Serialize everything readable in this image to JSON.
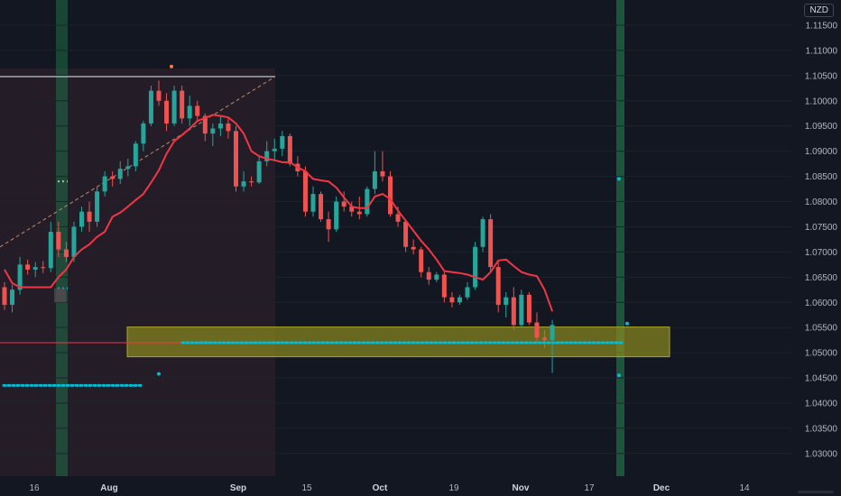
{
  "currency": "NZD",
  "colors": {
    "background": "#131722",
    "up": "#26a69a",
    "down": "#ef5350",
    "ma": "#f23645",
    "dots": "#00bcd4",
    "zone": "#8c8a1e",
    "highlight": "#1f6b45",
    "axis_text": "#b2b5be"
  },
  "chart_data": {
    "type": "candlestick",
    "y_ticks": [
      "1.11500",
      "1.11000",
      "1.10500",
      "1.10000",
      "1.09500",
      "1.09000",
      "1.08500",
      "1.08000",
      "1.07500",
      "1.07000",
      "1.06500",
      "1.06000",
      "1.05500",
      "1.05000",
      "1.04500",
      "1.04000",
      "1.03500",
      "1.03000"
    ],
    "ylim": [
      1.0255,
      1.1175
    ],
    "x_labels": [
      {
        "text": "16",
        "bold": false
      },
      {
        "text": "Aug",
        "bold": true
      },
      {
        "text": "Sep",
        "bold": true
      },
      {
        "text": "15",
        "bold": false
      },
      {
        "text": "Oct",
        "bold": true
      },
      {
        "text": "19",
        "bold": false
      },
      {
        "text": "Nov",
        "bold": true
      },
      {
        "text": "17",
        "bold": false
      },
      {
        "text": "Dec",
        "bold": true
      },
      {
        "text": "14",
        "bold": false
      }
    ],
    "support_zone": [
      1.0492,
      1.0551
    ],
    "horizontal_level": 1.1048,
    "moving_average": [
      1.0665,
      1.0638,
      1.063,
      1.063,
      1.063,
      1.063,
      1.063,
      1.065,
      1.0665,
      1.069,
      1.0705,
      1.0715,
      1.073,
      1.074,
      1.077,
      1.0778,
      1.079,
      1.0803,
      1.0815,
      1.0838,
      1.0862,
      1.0895,
      1.092,
      1.0932,
      1.0945,
      1.096,
      1.0966,
      1.0972,
      1.097,
      1.0967,
      1.0955,
      1.0935,
      1.09,
      1.089,
      1.0885,
      1.0882,
      1.0878,
      1.0878,
      1.0868,
      1.086,
      1.0845,
      1.0842,
      1.084,
      1.0828,
      1.0808,
      1.079,
      1.0787,
      1.0787,
      1.081,
      1.0815,
      1.0805,
      1.0782,
      1.0762,
      1.0742,
      1.0722,
      1.0705,
      1.0685,
      1.0662,
      1.066,
      1.0658,
      1.0655,
      1.065,
      1.0645,
      1.066,
      1.0683,
      1.0685,
      1.0672,
      1.066,
      1.0655,
      1.0652,
      1.0625,
      1.0582
    ],
    "candles": [
      [
        1.063,
        1.064,
        1.0585,
        1.0595
      ],
      [
        1.0595,
        1.0635,
        1.058,
        1.0625
      ],
      [
        1.0625,
        1.069,
        1.0615,
        1.0675
      ],
      [
        1.0675,
        1.0685,
        1.0655,
        1.0665
      ],
      [
        1.0665,
        1.068,
        1.065,
        1.067
      ],
      [
        1.067,
        1.0682,
        1.0658,
        1.0668
      ],
      [
        1.0668,
        1.076,
        1.066,
        1.074
      ],
      [
        1.074,
        1.076,
        1.069,
        1.0705
      ],
      [
        1.0705,
        1.072,
        1.068,
        1.069
      ],
      [
        1.069,
        1.076,
        1.068,
        1.075
      ],
      [
        1.075,
        1.079,
        1.074,
        1.078
      ],
      [
        1.078,
        1.08,
        1.074,
        1.076
      ],
      [
        1.076,
        1.083,
        1.075,
        1.082
      ],
      [
        1.082,
        1.086,
        1.081,
        1.085
      ],
      [
        1.085,
        1.086,
        1.083,
        1.0845
      ],
      [
        1.0845,
        1.088,
        1.0835,
        1.0865
      ],
      [
        1.0865,
        1.0885,
        1.085,
        1.087
      ],
      [
        1.087,
        1.092,
        1.086,
        1.0915
      ],
      [
        1.0915,
        1.096,
        1.09,
        1.0955
      ],
      [
        1.0955,
        1.103,
        1.095,
        1.102
      ],
      [
        1.102,
        1.104,
        1.099,
        1.1
      ],
      [
        1.1,
        1.1015,
        1.094,
        1.0955
      ],
      [
        1.0955,
        1.103,
        1.095,
        1.102
      ],
      [
        1.102,
        1.103,
        1.0955,
        1.0965
      ],
      [
        1.0965,
        1.101,
        1.095,
        1.099
      ],
      [
        1.099,
        1.1,
        1.096,
        1.097
      ],
      [
        1.097,
        1.0975,
        1.092,
        1.0935
      ],
      [
        1.0935,
        1.0955,
        1.091,
        1.0945
      ],
      [
        1.0945,
        1.097,
        1.093,
        1.0955
      ],
      [
        1.0955,
        1.0965,
        1.0925,
        1.094
      ],
      [
        1.094,
        1.095,
        1.082,
        1.083
      ],
      [
        1.083,
        1.086,
        1.082,
        1.084
      ],
      [
        1.084,
        1.085,
        1.083,
        1.0838
      ],
      [
        1.0838,
        1.089,
        1.0835,
        1.088
      ],
      [
        1.088,
        1.092,
        1.087,
        1.09
      ],
      [
        1.09,
        1.0925,
        1.088,
        1.0905
      ],
      [
        1.0905,
        1.094,
        1.089,
        1.093
      ],
      [
        1.093,
        1.0935,
        1.087,
        1.0875
      ],
      [
        1.0875,
        1.089,
        1.085,
        1.086
      ],
      [
        1.086,
        1.087,
        1.077,
        1.078
      ],
      [
        1.078,
        1.083,
        1.077,
        1.0815
      ],
      [
        1.0815,
        1.082,
        1.076,
        1.0765
      ],
      [
        1.0765,
        1.078,
        1.072,
        1.0745
      ],
      [
        1.0745,
        1.081,
        1.074,
        1.08
      ],
      [
        1.08,
        1.082,
        1.078,
        1.079
      ],
      [
        1.079,
        1.08,
        1.077,
        1.078
      ],
      [
        1.078,
        1.081,
        1.0765,
        1.0775
      ],
      [
        1.0775,
        1.083,
        1.077,
        1.0825
      ],
      [
        1.0825,
        1.09,
        1.0815,
        1.086
      ],
      [
        1.086,
        1.09,
        1.084,
        1.085
      ],
      [
        1.085,
        1.086,
        1.077,
        1.0775
      ],
      [
        1.0775,
        1.079,
        1.075,
        1.076
      ],
      [
        1.076,
        1.0765,
        1.07,
        1.071
      ],
      [
        1.071,
        1.0725,
        1.0695,
        1.0705
      ],
      [
        1.0705,
        1.071,
        1.065,
        1.066
      ],
      [
        1.066,
        1.067,
        1.0635,
        1.0645
      ],
      [
        1.0645,
        1.066,
        1.064,
        1.0655
      ],
      [
        1.0655,
        1.066,
        1.06,
        1.061
      ],
      [
        1.061,
        1.062,
        1.059,
        1.06
      ],
      [
        1.06,
        1.0615,
        1.0595,
        1.061
      ],
      [
        1.061,
        1.064,
        1.0605,
        1.063
      ],
      [
        1.063,
        1.072,
        1.0625,
        1.071
      ],
      [
        1.071,
        1.077,
        1.07,
        1.0765
      ],
      [
        1.0765,
        1.0775,
        1.066,
        1.067
      ],
      [
        1.067,
        1.068,
        1.058,
        1.0595
      ],
      [
        1.0595,
        1.062,
        1.057,
        1.061
      ],
      [
        1.061,
        1.063,
        1.0545,
        1.0555
      ],
      [
        1.0555,
        1.0625,
        1.055,
        1.0615
      ],
      [
        1.0615,
        1.062,
        1.0555,
        1.056
      ],
      [
        1.056,
        1.058,
        1.052,
        1.053
      ],
      [
        1.053,
        1.0545,
        1.051,
        1.0525
      ],
      [
        1.0525,
        1.0565,
        1.046,
        1.0555
      ]
    ]
  }
}
